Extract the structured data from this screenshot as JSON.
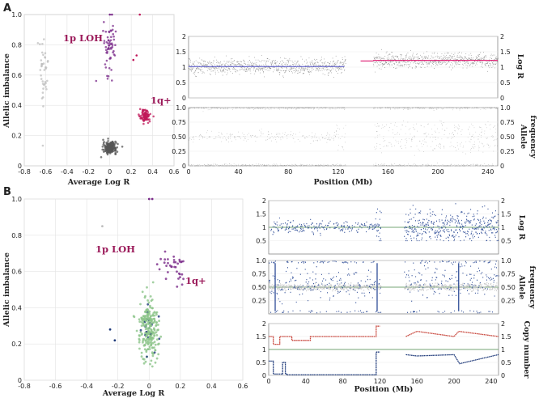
{
  "panels": [
    {
      "label": "A"
    },
    {
      "label": "B"
    }
  ],
  "colors": {
    "gray": "#555555",
    "purple": "#7a2a8a",
    "magenta": "#c0185a",
    "blue": "#1f3f8f",
    "green": "#8cc48a",
    "red": "#c8463c",
    "darkblue": "#1f3a7a",
    "lightgray": "#bdbdbd",
    "pink": "#e0287a"
  },
  "chart_data": [
    {
      "id": "A-scatter",
      "type": "scatter",
      "xlabel": "Average Log R",
      "ylabel": "Allelic imbalance",
      "xlim": [
        -0.8,
        0.6
      ],
      "ylim": [
        0,
        1
      ],
      "x_ticks": [
        "-0.8",
        "-0.6",
        "-0.4",
        "-0.2",
        "0",
        "0.2",
        "0.4",
        "0.6"
      ],
      "y_ticks": [
        "0",
        "0.2",
        "0.4",
        "0.6",
        "0.8",
        "1.0"
      ],
      "clusters": [
        {
          "name": "normal",
          "cx": 0.0,
          "cy": 0.12,
          "sx": 0.03,
          "sy": 0.018,
          "n": 220
        },
        {
          "name": "1p LOH",
          "cx": 0.0,
          "cy": 0.78,
          "sx": 0.03,
          "sy": 0.09,
          "n": 60
        },
        {
          "name": "1q+",
          "cx": 0.33,
          "cy": 0.33,
          "sx": 0.025,
          "sy": 0.02,
          "n": 90
        },
        {
          "name": "outliers",
          "cx": -0.62,
          "cy": 0.62,
          "sx": 0.03,
          "sy": 0.12,
          "n": 40
        }
      ],
      "annotations": [
        "1p LOH",
        "1q+"
      ]
    },
    {
      "id": "A-logr",
      "type": "scatter",
      "ylabel": "Log R",
      "xlim": [
        0,
        248
      ],
      "ylim": [
        0,
        2
      ],
      "y_ticks": [
        "0",
        "0.5",
        "1",
        "1.5",
        "2"
      ],
      "segments": [
        {
          "x": [
            0,
            125
          ],
          "y": 1.02
        },
        {
          "x": 148,
          "x2": 248,
          "y": 1.22
        }
      ]
    },
    {
      "id": "A-baf",
      "type": "scatter",
      "ylabel": "Allele frequency",
      "xlabel": "Position (Mb)",
      "xlim": [
        0,
        248
      ],
      "ylim": [
        0,
        1
      ],
      "y_ticks": [
        "0",
        "0.25",
        "0.50",
        "0.75",
        "1.0"
      ],
      "x_ticks": [
        "0",
        "40",
        "80",
        "120",
        "160",
        "200",
        "240"
      ],
      "bands_before_120": [
        0,
        0.5,
        1
      ],
      "bands_after_120": [
        0,
        0.33,
        0.5,
        0.67,
        1
      ]
    },
    {
      "id": "B-scatter",
      "type": "scatter",
      "xlabel": "Average Log R",
      "ylabel": "Allelic imbalance",
      "xlim": [
        -0.8,
        0.6
      ],
      "ylim": [
        0,
        1
      ],
      "x_ticks": [
        "-0.8",
        "-0.6",
        "-0.4",
        "-0.2",
        "0",
        "0.2",
        "0.4",
        "0.6"
      ],
      "y_ticks": [
        "0",
        "0.2",
        "0.4",
        "0.6",
        "0.8",
        "1.0"
      ],
      "clusters": [
        {
          "name": "normal",
          "cx": 0.0,
          "cy": 0.28,
          "sx": 0.03,
          "sy": 0.08,
          "n": 260
        },
        {
          "name": "1p LOH",
          "cx": 0.13,
          "cy": 0.64,
          "sx": 0.04,
          "sy": 0.04,
          "n": 20
        },
        {
          "name": "1q+",
          "cx": 0.17,
          "cy": 0.6,
          "sx": 0.03,
          "sy": 0.05,
          "n": 15
        }
      ],
      "annotations": [
        "1p LOH",
        "1q+"
      ]
    },
    {
      "id": "B-logr",
      "type": "scatter",
      "ylabel": "Log R",
      "xlim": [
        0,
        248
      ],
      "ylim": [
        0,
        2
      ],
      "y_ticks": [
        "0.5",
        "1",
        "1.5",
        "2"
      ],
      "ref": 1
    },
    {
      "id": "B-baf",
      "type": "scatter",
      "ylabel": "Allele frequency",
      "xlim": [
        0,
        248
      ],
      "ylim": [
        0,
        1
      ],
      "y_ticks": [
        "0.25",
        "0.50",
        "0.75",
        "1.0"
      ],
      "ref": 0.5
    },
    {
      "id": "B-cn",
      "type": "line",
      "ylabel": "Copy number",
      "xlabel": "Position (Mb)",
      "xlim": [
        0,
        248
      ],
      "ylim": [
        0,
        2
      ],
      "y_ticks": [
        "0",
        "0.5",
        "1",
        "1.5",
        "2"
      ],
      "x_ticks": [
        "0",
        "40",
        "80",
        "120",
        "160",
        "200",
        "240"
      ],
      "ref": 1,
      "series": [
        {
          "name": "red",
          "x": [
            0,
            5,
            5,
            12,
            12,
            25,
            25,
            45,
            45,
            60,
            60,
            78,
            78,
            100,
            100,
            116,
            116,
            120,
            148,
            148,
            160,
            160,
            200,
            200,
            205,
            205,
            248
          ],
          "y": [
            1.5,
            1.5,
            1.2,
            1.2,
            1.5,
            1.5,
            1.35,
            1.35,
            1.5,
            1.5,
            1.5,
            1.5,
            1.5,
            1.5,
            1.5,
            1.5,
            1.9,
            1.9,
            1.5,
            1.5,
            1.7,
            1.7,
            1.5,
            1.5,
            1.7,
            1.7,
            1.5
          ]
        },
        {
          "name": "blue",
          "x": [
            0,
            5,
            5,
            15,
            15,
            18,
            18,
            20,
            20,
            40,
            40,
            100,
            100,
            116,
            116,
            120,
            148,
            148,
            160,
            160,
            200,
            200,
            206,
            206,
            248
          ],
          "y": [
            0.55,
            0.55,
            0.05,
            0.05,
            0.5,
            0.5,
            0.05,
            0.05,
            0.02,
            0.02,
            0.02,
            0.02,
            0.02,
            0.02,
            0.9,
            0.9,
            0.8,
            0.8,
            0.75,
            0.75,
            0.8,
            0.8,
            0.45,
            0.45,
            0.8
          ]
        }
      ]
    }
  ],
  "axis_labels": {
    "logr": "Log R",
    "allele": "Allele",
    "frequency": "frequency",
    "copy": "Copy number",
    "position": "Position (Mb)",
    "avglogr": "Average Log R",
    "allelic": "Allelic imbalance"
  }
}
